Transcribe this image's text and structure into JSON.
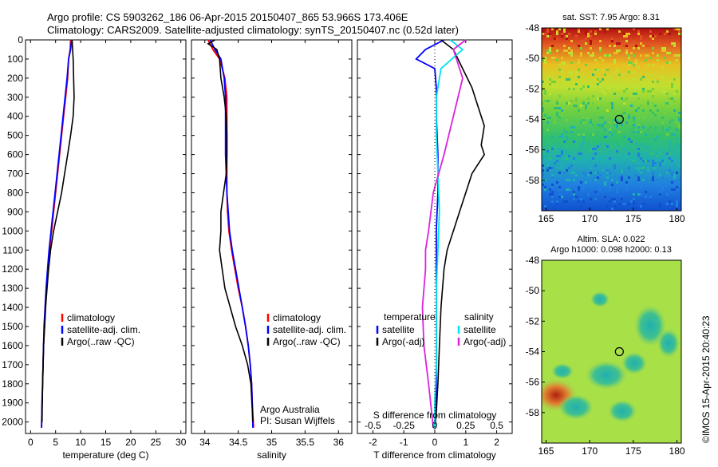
{
  "header": {
    "line1": "Argo profile: CS 5903262_186 06-Apr-2015 20150407_865 53.966S 173.406E",
    "line2": "Climatology: CARS2009. Satellite-adjusted climatology: synTS_20150407.nc (0.52d later)"
  },
  "colors": {
    "climatology": "#ff0000",
    "satellite": "#0000ff",
    "argo": "#000000",
    "sat_salinity": "#00e5ee",
    "argo_salinity": "#dd22dd",
    "map_marker": "#00cc00"
  },
  "chart_data": [
    {
      "type": "line",
      "id": "temperature",
      "xlabel": "temperature (deg C)",
      "ylabel": "",
      "xlim": [
        -1,
        31
      ],
      "ylim": [
        2060,
        0
      ],
      "xticks": [
        0,
        5,
        10,
        15,
        20,
        25,
        30
      ],
      "yticks": [
        0,
        100,
        200,
        300,
        400,
        500,
        600,
        700,
        800,
        900,
        1000,
        1100,
        1200,
        1300,
        1400,
        1500,
        1600,
        1700,
        1800,
        1900,
        2000
      ],
      "legend": [
        "climatology",
        "satellite-adj. clim.",
        "Argo(..raw -QC)"
      ],
      "series": [
        {
          "name": "climatology",
          "color": "#ff0000",
          "x": [
            8.0,
            7.9,
            7.6,
            7.4,
            7.0,
            6.6,
            6.2,
            5.8,
            5.4,
            5.0,
            4.6,
            4.2,
            3.8,
            3.5,
            3.2,
            3.0,
            2.8,
            2.6,
            2.5,
            2.4,
            2.3,
            2.2
          ],
          "y": [
            0,
            50,
            100,
            200,
            300,
            400,
            500,
            600,
            700,
            800,
            900,
            1000,
            1100,
            1200,
            1300,
            1400,
            1500,
            1600,
            1700,
            1800,
            1900,
            2030
          ]
        },
        {
          "name": "satellite-adj. clim.",
          "color": "#0000ff",
          "x": [
            8.2,
            8.0,
            7.6,
            7.3,
            6.9,
            6.5,
            6.1,
            5.7,
            5.3,
            4.9,
            4.5,
            4.1,
            3.7,
            3.4,
            3.1,
            2.9,
            2.7,
            2.6,
            2.5,
            2.4,
            2.3,
            2.2
          ],
          "y": [
            0,
            50,
            100,
            200,
            300,
            400,
            500,
            600,
            700,
            800,
            900,
            1000,
            1100,
            1200,
            1300,
            1400,
            1500,
            1600,
            1700,
            1800,
            1900,
            2030
          ]
        },
        {
          "name": "Argo(..raw -QC)",
          "color": "#000000",
          "x": [
            8.3,
            8.4,
            8.5,
            8.6,
            8.7,
            8.5,
            8.0,
            7.4,
            6.8,
            6.2,
            5.4,
            4.6,
            4.0,
            3.6,
            3.3,
            3.0,
            2.8,
            2.6,
            2.5,
            2.4,
            2.3
          ],
          "y": [
            0,
            50,
            100,
            200,
            300,
            400,
            500,
            600,
            700,
            800,
            900,
            1000,
            1100,
            1200,
            1300,
            1400,
            1500,
            1600,
            1700,
            1800,
            2000
          ]
        }
      ]
    },
    {
      "type": "line",
      "id": "salinity",
      "xlabel": "salinity",
      "ylabel": "",
      "xlim": [
        33.8,
        36.2
      ],
      "ylim": [
        2060,
        0
      ],
      "xticks": [
        34,
        34.5,
        35,
        35.5,
        36
      ],
      "legend": [
        "climatology",
        "satellite-adj. clim.",
        "Argo(..raw -QC)"
      ],
      "annotation": [
        "Argo Australia",
        "PI: Susan Wijffels"
      ],
      "series": [
        {
          "name": "climatology",
          "color": "#ff0000",
          "x": [
            34.05,
            34.12,
            34.22,
            34.3,
            34.33,
            34.33,
            34.33,
            34.33,
            34.33,
            34.33,
            34.34,
            34.36,
            34.4,
            34.45,
            34.5,
            34.56,
            34.61,
            34.65,
            34.68,
            34.7,
            34.71,
            34.73
          ],
          "y": [
            0,
            50,
            100,
            200,
            300,
            400,
            500,
            600,
            700,
            800,
            900,
            1000,
            1100,
            1200,
            1300,
            1400,
            1500,
            1600,
            1700,
            1800,
            1900,
            2030
          ]
        },
        {
          "name": "satellite-adj. clim.",
          "color": "#0000ff",
          "x": [
            34.08,
            34.15,
            34.24,
            34.29,
            34.31,
            34.31,
            34.31,
            34.31,
            34.32,
            34.33,
            34.35,
            34.37,
            34.41,
            34.46,
            34.51,
            34.56,
            34.61,
            34.65,
            34.68,
            34.7,
            34.71,
            34.72
          ],
          "y": [
            0,
            50,
            100,
            200,
            300,
            400,
            500,
            600,
            700,
            800,
            900,
            1000,
            1100,
            1200,
            1300,
            1400,
            1500,
            1600,
            1700,
            1800,
            1900,
            2030
          ]
        },
        {
          "name": "Argo(..raw -QC)",
          "color": "#000000",
          "x": [
            34.15,
            34.05,
            34.18,
            34.22,
            34.24,
            34.29,
            34.32,
            34.33,
            34.33,
            34.32,
            34.28,
            34.24,
            34.24,
            34.22,
            34.26,
            34.3,
            34.38,
            34.46,
            34.56,
            34.64,
            34.69,
            34.72
          ],
          "y": [
            0,
            20,
            50,
            100,
            200,
            300,
            400,
            500,
            600,
            700,
            800,
            900,
            1000,
            1100,
            1200,
            1300,
            1400,
            1500,
            1600,
            1700,
            1800,
            2000
          ]
        }
      ]
    },
    {
      "type": "line",
      "id": "difference",
      "xlabel": "T difference from climatology",
      "xlabel2": "S difference from climatology",
      "xlim": [
        -2.5,
        2.5
      ],
      "xlim_s": [
        -0.625,
        0.625
      ],
      "ylim": [
        2060,
        0
      ],
      "xticks": [
        -2,
        -1,
        0,
        1,
        2
      ],
      "xticks_s": [
        "-0.5",
        "-0.25",
        "0",
        "0.25",
        "0.5"
      ],
      "legend_headers": [
        "temperature",
        "salinity"
      ],
      "legend": [
        "satellite",
        "Argo(-adj)",
        "satellite",
        "Argo(-adj)"
      ],
      "series": [
        {
          "name": "satellite",
          "color": "#0000ff",
          "x": [
            0.3,
            -0.3,
            -0.6,
            0.0,
            0.05,
            0.05,
            0.1,
            0.1,
            0.05,
            0.05,
            0.05,
            0.05,
            0.05,
            0.05,
            0.05,
            0.05,
            0.05,
            0.0,
            0.0,
            0.0
          ],
          "y": [
            0,
            50,
            100,
            150,
            250,
            400,
            600,
            800,
            1000,
            1200,
            1300,
            1400,
            1500,
            1600,
            1700,
            1800,
            1900,
            2000,
            2020,
            2030
          ]
        },
        {
          "name": "Argo(-adj)",
          "color": "#000000",
          "x": [
            0.2,
            0.6,
            0.9,
            1.2,
            1.4,
            1.6,
            1.5,
            1.6,
            1.2,
            1.0,
            0.8,
            0.6,
            0.4,
            0.3,
            0.2,
            0.15,
            0.1,
            0.05,
            0.0
          ],
          "y": [
            0,
            50,
            150,
            250,
            350,
            450,
            550,
            600,
            700,
            800,
            900,
            1000,
            1100,
            1200,
            1400,
            1600,
            1800,
            1950,
            2030
          ]
        },
        {
          "name": "satellite",
          "color": "#00e5ee",
          "x": [
            0.5,
            0.9,
            0.2,
            0.05,
            0.05,
            0.1,
            0.15,
            0.1,
            0.05,
            0.05,
            0.05,
            0.0,
            0.0
          ],
          "y": [
            0,
            50,
            150,
            300,
            500,
            700,
            900,
            1100,
            1300,
            1500,
            1700,
            1900,
            2030
          ]
        },
        {
          "name": "Argo(-adj)",
          "color": "#dd22dd",
          "x": [
            1.0,
            0.6,
            0.9,
            0.6,
            0.3,
            -0.05,
            -0.2,
            -0.3,
            -0.3,
            -0.4,
            -0.35,
            -0.2,
            -0.1,
            -0.05
          ],
          "y": [
            0,
            50,
            200,
            400,
            600,
            800,
            1000,
            1100,
            1200,
            1400,
            1600,
            1800,
            1950,
            2030
          ]
        }
      ]
    },
    {
      "type": "heatmap",
      "id": "sst_map",
      "title": "sat. SST: 7.95  Argo: 8.31",
      "xlim": [
        164.5,
        180.5
      ],
      "ylim": [
        -60,
        -48
      ],
      "xticks": [
        165,
        170,
        175,
        180
      ],
      "yticks": [
        -48,
        -50,
        -52,
        -54,
        -56,
        -58
      ],
      "marker": {
        "lon": 173.4,
        "lat": -54.0
      }
    },
    {
      "type": "heatmap",
      "id": "sla_map",
      "title_line1": "Altim. SLA: 0.022",
      "title_line2": "Argo h1000: 0.098 h2000: 0.13",
      "xlim": [
        164.5,
        180.5
      ],
      "ylim": [
        -60,
        -48
      ],
      "xticks": [
        165,
        170,
        175,
        180
      ],
      "yticks": [
        -48,
        -50,
        -52,
        -54,
        -56,
        -58
      ],
      "marker": {
        "lon": 173.4,
        "lat": -54.0
      }
    }
  ],
  "credit": "©IMOS 15-Apr-2015 20:40:23"
}
